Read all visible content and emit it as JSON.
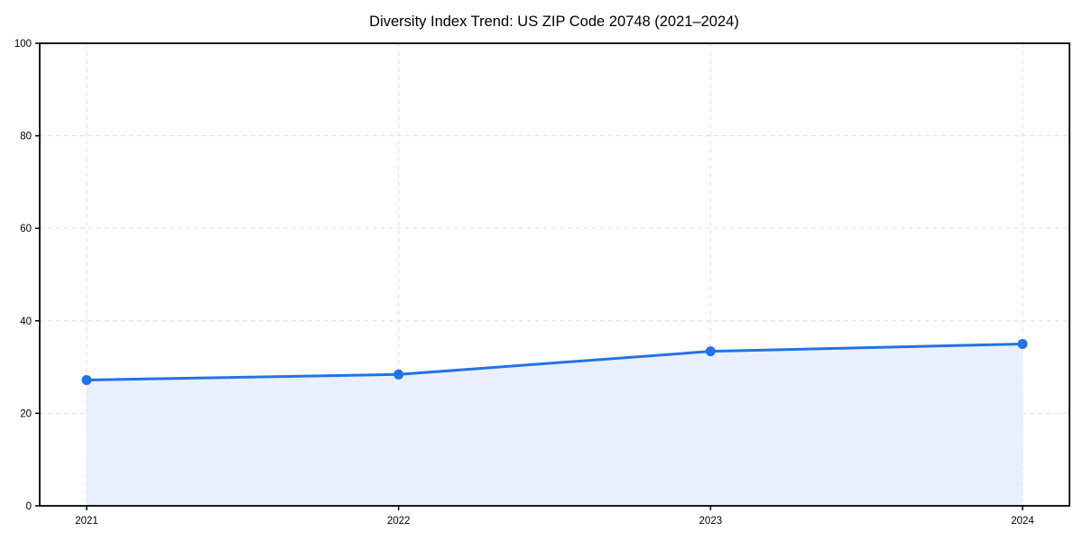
{
  "chart_data": {
    "type": "area",
    "title": "Diversity Index Trend: US ZIP Code 20748 (2021–2024)",
    "categories": [
      "2021",
      "2022",
      "2023",
      "2024"
    ],
    "values": [
      27.2,
      28.4,
      33.4,
      35.0
    ],
    "series_name": "Diversity Index",
    "xlabel": "",
    "ylabel": "",
    "ylim": [
      0,
      100
    ],
    "yticks": [
      0,
      20,
      40,
      60,
      80,
      100
    ],
    "grid": true,
    "grid_style": "dashed",
    "legend": "none",
    "colors": {
      "line": "#2273e4",
      "marker": "#2273e4",
      "area_fill": "#e9effc",
      "grid": "#dfdfdf",
      "spine": "#000000",
      "text": "#000000",
      "background": "#ffffff"
    }
  }
}
